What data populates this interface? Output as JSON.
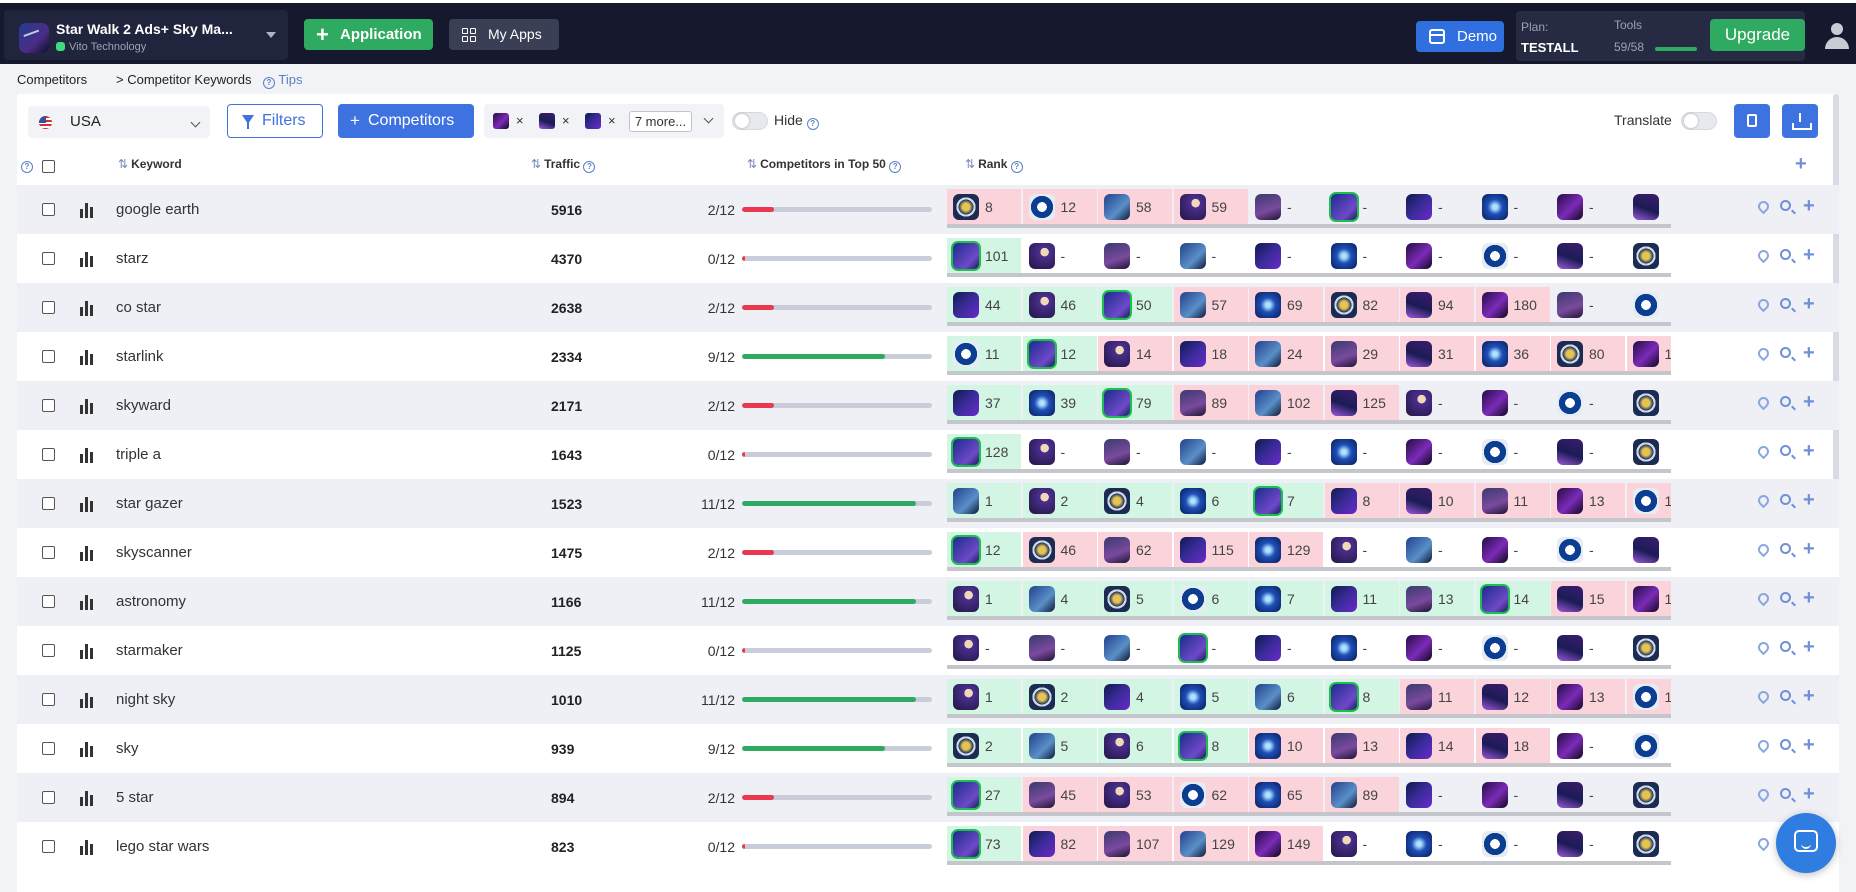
{
  "topbar": {
    "app_name": "Star Walk 2 Ads+ Sky Ma...",
    "developer": "Vito Technology",
    "application_label": "Application",
    "my_apps_label": "My Apps",
    "demo_label": "Demo",
    "plan_label": "Plan:",
    "plan_value": "TESTALL",
    "tools_label": "Tools",
    "tools_value": "59/58",
    "upgrade_label": "Upgrade"
  },
  "breadcrumb": {
    "root": "Competitors",
    "current": "> Competitor Keywords",
    "tips": "Tips"
  },
  "toolbar": {
    "country": "USA",
    "filters_label": "Filters",
    "competitors_label": "Competitors",
    "more_label": "7 more...",
    "hide_label": "Hide",
    "translate_label": "Translate"
  },
  "columns": {
    "keyword": "Keyword",
    "traffic": "Traffic",
    "competitors_top": "Competitors in Top 50",
    "rank": "Rank"
  },
  "colors": {
    "green": "#2faa61",
    "red": "#e9384f",
    "accent": "#3e72e0",
    "cell_green": "#d3f5e4",
    "cell_red": "#fad3db"
  },
  "rows": [
    {
      "keyword": "google earth",
      "traffic": "5916",
      "top": "2/12",
      "fill": 0.167,
      "ranks": [
        [
          "a7",
          "8",
          "r"
        ],
        [
          "a6",
          "12",
          "r"
        ],
        [
          "a3",
          "58",
          "r"
        ],
        [
          "a1",
          "59",
          "r"
        ],
        [
          "a2",
          "-",
          ""
        ],
        [
          "a0",
          "-",
          "hl"
        ],
        [
          "a8",
          "-",
          ""
        ],
        [
          "a4",
          "-",
          ""
        ],
        [
          "a5",
          "-",
          ""
        ],
        [
          "a9",
          "",
          ""
        ]
      ]
    },
    {
      "keyword": "starz",
      "traffic": "4370",
      "top": "0/12",
      "fill": 0,
      "ranks": [
        [
          "a0",
          "101",
          "hl"
        ],
        [
          "a1",
          "-",
          ""
        ],
        [
          "a2",
          "-",
          ""
        ],
        [
          "a3",
          "-",
          ""
        ],
        [
          "a8",
          "-",
          ""
        ],
        [
          "a4",
          "-",
          ""
        ],
        [
          "a5",
          "-",
          ""
        ],
        [
          "a6",
          "-",
          ""
        ],
        [
          "a9",
          "-",
          ""
        ],
        [
          "a7",
          "",
          ""
        ]
      ]
    },
    {
      "keyword": "co star",
      "traffic": "2638",
      "top": "2/12",
      "fill": 0.167,
      "ranks": [
        [
          "a8",
          "44",
          "g"
        ],
        [
          "a1",
          "46",
          "g"
        ],
        [
          "a0",
          "50",
          "hl"
        ],
        [
          "a3",
          "57",
          "r"
        ],
        [
          "a4",
          "69",
          "r"
        ],
        [
          "a7",
          "82",
          "r"
        ],
        [
          "a9",
          "94",
          "r"
        ],
        [
          "a5",
          "180",
          "r"
        ],
        [
          "a2",
          "-",
          ""
        ],
        [
          "a6",
          "",
          ""
        ]
      ]
    },
    {
      "keyword": "starlink",
      "traffic": "2334",
      "top": "9/12",
      "fill": 0.75,
      "ranks": [
        [
          "a6",
          "11",
          "g"
        ],
        [
          "a0",
          "12",
          "hl"
        ],
        [
          "a1",
          "14",
          "r"
        ],
        [
          "a8",
          "18",
          "r"
        ],
        [
          "a3",
          "24",
          "r"
        ],
        [
          "a2",
          "29",
          "r"
        ],
        [
          "a9",
          "31",
          "r"
        ],
        [
          "a4",
          "36",
          "r"
        ],
        [
          "a7",
          "80",
          "r"
        ],
        [
          "a5",
          "1",
          "r"
        ]
      ]
    },
    {
      "keyword": "skyward",
      "traffic": "2171",
      "top": "2/12",
      "fill": 0.167,
      "ranks": [
        [
          "a8",
          "37",
          "g"
        ],
        [
          "a4",
          "39",
          "g"
        ],
        [
          "a0",
          "79",
          "hl"
        ],
        [
          "a2",
          "89",
          "r"
        ],
        [
          "a3",
          "102",
          "r"
        ],
        [
          "a9",
          "125",
          "r"
        ],
        [
          "a1",
          "-",
          ""
        ],
        [
          "a5",
          "-",
          ""
        ],
        [
          "a6",
          "-",
          ""
        ],
        [
          "a7",
          "",
          ""
        ]
      ]
    },
    {
      "keyword": "triple a",
      "traffic": "1643",
      "top": "0/12",
      "fill": 0,
      "ranks": [
        [
          "a0",
          "128",
          "hl"
        ],
        [
          "a1",
          "-",
          ""
        ],
        [
          "a2",
          "-",
          ""
        ],
        [
          "a3",
          "-",
          ""
        ],
        [
          "a8",
          "-",
          ""
        ],
        [
          "a4",
          "-",
          ""
        ],
        [
          "a5",
          "-",
          ""
        ],
        [
          "a6",
          "-",
          ""
        ],
        [
          "a9",
          "-",
          ""
        ],
        [
          "a7",
          "",
          ""
        ]
      ]
    },
    {
      "keyword": "star gazer",
      "traffic": "1523",
      "top": "11/12",
      "fill": 0.917,
      "ranks": [
        [
          "a3",
          "1",
          "g"
        ],
        [
          "a1",
          "2",
          "g"
        ],
        [
          "a7",
          "4",
          "g"
        ],
        [
          "a4",
          "6",
          "g"
        ],
        [
          "a0",
          "7",
          "hl"
        ],
        [
          "a8",
          "8",
          "r"
        ],
        [
          "a9",
          "10",
          "r"
        ],
        [
          "a2",
          "11",
          "r"
        ],
        [
          "a5",
          "13",
          "r"
        ],
        [
          "a6",
          "1",
          "r"
        ]
      ]
    },
    {
      "keyword": "skyscanner",
      "traffic": "1475",
      "top": "2/12",
      "fill": 0.167,
      "ranks": [
        [
          "a0",
          "12",
          "hl"
        ],
        [
          "a7",
          "46",
          "r"
        ],
        [
          "a2",
          "62",
          "r"
        ],
        [
          "a8",
          "115",
          "r"
        ],
        [
          "a4",
          "129",
          "r"
        ],
        [
          "a1",
          "-",
          ""
        ],
        [
          "a3",
          "-",
          ""
        ],
        [
          "a5",
          "-",
          ""
        ],
        [
          "a6",
          "-",
          ""
        ],
        [
          "a9",
          "",
          ""
        ]
      ]
    },
    {
      "keyword": "astronomy",
      "traffic": "1166",
      "top": "11/12",
      "fill": 0.917,
      "ranks": [
        [
          "a1",
          "1",
          "g"
        ],
        [
          "a3",
          "4",
          "g"
        ],
        [
          "a7",
          "5",
          "g"
        ],
        [
          "a6",
          "6",
          "g"
        ],
        [
          "a4",
          "7",
          "g"
        ],
        [
          "a8",
          "11",
          "g"
        ],
        [
          "a2",
          "13",
          "g"
        ],
        [
          "a0",
          "14",
          "hl"
        ],
        [
          "a9",
          "15",
          "r"
        ],
        [
          "a5",
          "1",
          "r"
        ]
      ]
    },
    {
      "keyword": "starmaker",
      "traffic": "1125",
      "top": "0/12",
      "fill": 0,
      "ranks": [
        [
          "a1",
          "-",
          ""
        ],
        [
          "a2",
          "-",
          ""
        ],
        [
          "a3",
          "-",
          ""
        ],
        [
          "a0",
          "-",
          "hl"
        ],
        [
          "a8",
          "-",
          ""
        ],
        [
          "a4",
          "-",
          ""
        ],
        [
          "a5",
          "-",
          ""
        ],
        [
          "a6",
          "-",
          ""
        ],
        [
          "a9",
          "-",
          ""
        ],
        [
          "a7",
          "",
          ""
        ]
      ]
    },
    {
      "keyword": "night sky",
      "traffic": "1010",
      "top": "11/12",
      "fill": 0.917,
      "ranks": [
        [
          "a1",
          "1",
          "g"
        ],
        [
          "a7",
          "2",
          "g"
        ],
        [
          "a8",
          "4",
          "g"
        ],
        [
          "a4",
          "5",
          "g"
        ],
        [
          "a3",
          "6",
          "g"
        ],
        [
          "a0",
          "8",
          "hl"
        ],
        [
          "a2",
          "11",
          "r"
        ],
        [
          "a9",
          "12",
          "r"
        ],
        [
          "a5",
          "13",
          "r"
        ],
        [
          "a6",
          "1",
          "r"
        ]
      ]
    },
    {
      "keyword": "sky",
      "traffic": "939",
      "top": "9/12",
      "fill": 0.75,
      "ranks": [
        [
          "a7",
          "2",
          "g"
        ],
        [
          "a3",
          "5",
          "g"
        ],
        [
          "a1",
          "6",
          "g"
        ],
        [
          "a0",
          "8",
          "hl"
        ],
        [
          "a4",
          "10",
          "r"
        ],
        [
          "a2",
          "13",
          "r"
        ],
        [
          "a8",
          "14",
          "r"
        ],
        [
          "a9",
          "18",
          "r"
        ],
        [
          "a5",
          "-",
          ""
        ],
        [
          "a6",
          "",
          ""
        ]
      ]
    },
    {
      "keyword": "5 star",
      "traffic": "894",
      "top": "2/12",
      "fill": 0.167,
      "ranks": [
        [
          "a0",
          "27",
          "hl"
        ],
        [
          "a2",
          "45",
          "r"
        ],
        [
          "a1",
          "53",
          "r"
        ],
        [
          "a6",
          "62",
          "r"
        ],
        [
          "a4",
          "65",
          "r"
        ],
        [
          "a3",
          "89",
          "r"
        ],
        [
          "a8",
          "-",
          ""
        ],
        [
          "a5",
          "-",
          ""
        ],
        [
          "a9",
          "-",
          ""
        ],
        [
          "a7",
          "",
          ""
        ]
      ]
    },
    {
      "keyword": "lego star wars",
      "traffic": "823",
      "top": "0/12",
      "fill": 0,
      "ranks": [
        [
          "a0",
          "73",
          "hl"
        ],
        [
          "a8",
          "82",
          "r"
        ],
        [
          "a2",
          "107",
          "r"
        ],
        [
          "a3",
          "129",
          "r"
        ],
        [
          "a5",
          "149",
          "r"
        ],
        [
          "a1",
          "-",
          ""
        ],
        [
          "a4",
          "-",
          ""
        ],
        [
          "a6",
          "-",
          ""
        ],
        [
          "a9",
          "-",
          ""
        ],
        [
          "a7",
          "",
          ""
        ]
      ]
    }
  ]
}
